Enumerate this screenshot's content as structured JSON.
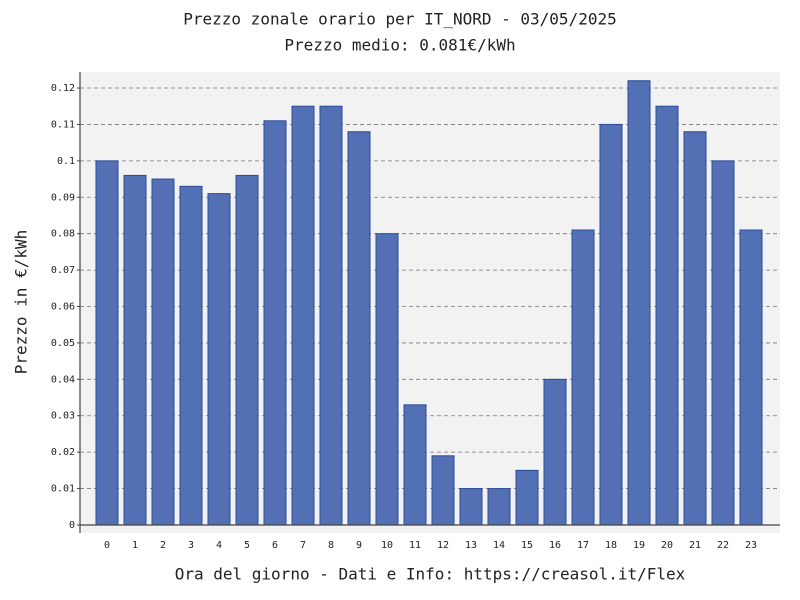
{
  "chart_data": {
    "type": "bar",
    "title": "Prezzo zonale orario per IT_NORD - 03/05/2025",
    "subtitle": "Prezzo medio: 0.081€/kWh",
    "xlabel": "Ora del giorno - Dati e Info: https://creasol.it/Flex",
    "ylabel": "Prezzo in €/kWh",
    "categories": [
      "0",
      "1",
      "2",
      "3",
      "4",
      "5",
      "6",
      "7",
      "8",
      "9",
      "10",
      "11",
      "12",
      "13",
      "14",
      "15",
      "16",
      "17",
      "18",
      "19",
      "20",
      "21",
      "22",
      "23"
    ],
    "values": [
      0.1,
      0.096,
      0.095,
      0.093,
      0.091,
      0.096,
      0.111,
      0.115,
      0.115,
      0.108,
      0.08,
      0.033,
      0.019,
      0.01,
      0.01,
      0.015,
      0.04,
      0.081,
      0.11,
      0.122,
      0.115,
      0.108,
      0.1,
      0.081
    ],
    "color": "#5470b4",
    "ylim": [
      -0.0022,
      0.1244
    ],
    "yticks": [
      0,
      0.01,
      0.02,
      0.03,
      0.04,
      0.05,
      0.06,
      0.07,
      0.08,
      0.09,
      0.1,
      0.11,
      0.12
    ],
    "grid": true
  }
}
